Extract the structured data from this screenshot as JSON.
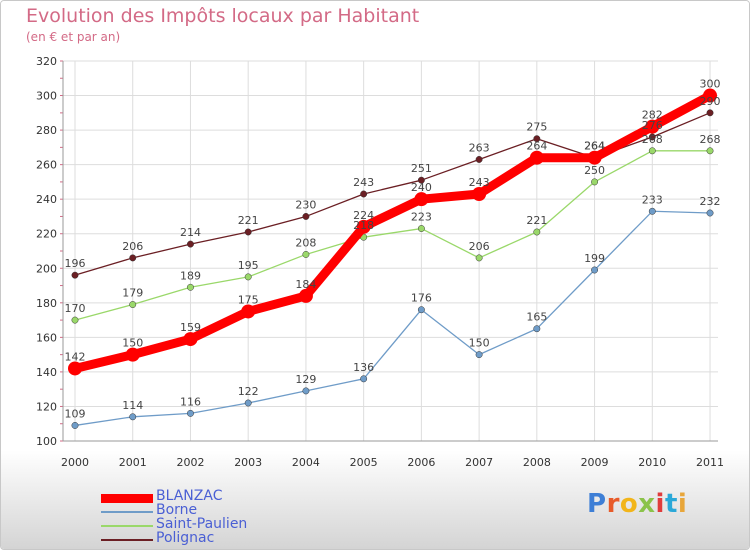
{
  "header": {
    "title": "Evolution des Impôts locaux par Habitant",
    "subtitle": "(en € et par an)"
  },
  "logo": {
    "text": "Proxiti",
    "letters": [
      "P",
      "r",
      "o",
      "x",
      "i",
      "t",
      "i"
    ],
    "colors": [
      "#3e7fd6",
      "#e85b2a",
      "#f2b51a",
      "#8bc34a",
      "#e03c3c",
      "#2aa8d8",
      "#e8a63a"
    ]
  },
  "chart_data": {
    "type": "line",
    "title": "Evolution des Impôts locaux par Habitant",
    "subtitle": "(en € et par an)",
    "xlabel": "",
    "ylabel": "",
    "x": [
      "2000",
      "2001",
      "2002",
      "2003",
      "2004",
      "2005",
      "2006",
      "2007",
      "2008",
      "2009",
      "2010",
      "2011"
    ],
    "ylim": [
      100,
      320
    ],
    "yticks": [
      "100",
      "120",
      "140",
      "160",
      "180",
      "200",
      "220",
      "240",
      "260",
      "280",
      "300",
      "320"
    ],
    "grid": true,
    "legend_position": "bottom-left",
    "series": [
      {
        "name": "Polignac",
        "color": "#6b1f24",
        "values": [
          196,
          206,
          214,
          221,
          230,
          243,
          251,
          263,
          275,
          264,
          276,
          290
        ]
      },
      {
        "name": "Saint-Paulien",
        "color": "#9ad86a",
        "values": [
          170,
          179,
          189,
          195,
          208,
          218,
          223,
          206,
          221,
          250,
          268,
          268
        ]
      },
      {
        "name": "Borne",
        "color": "#6f9cc8",
        "values": [
          109,
          114,
          116,
          122,
          129,
          136,
          176,
          150,
          165,
          199,
          233,
          232
        ]
      },
      {
        "name": "BLANZAC",
        "color": "#ff0000",
        "values": [
          142,
          150,
          159,
          175,
          184,
          224,
          240,
          243,
          264,
          264,
          282,
          300
        ]
      }
    ]
  }
}
